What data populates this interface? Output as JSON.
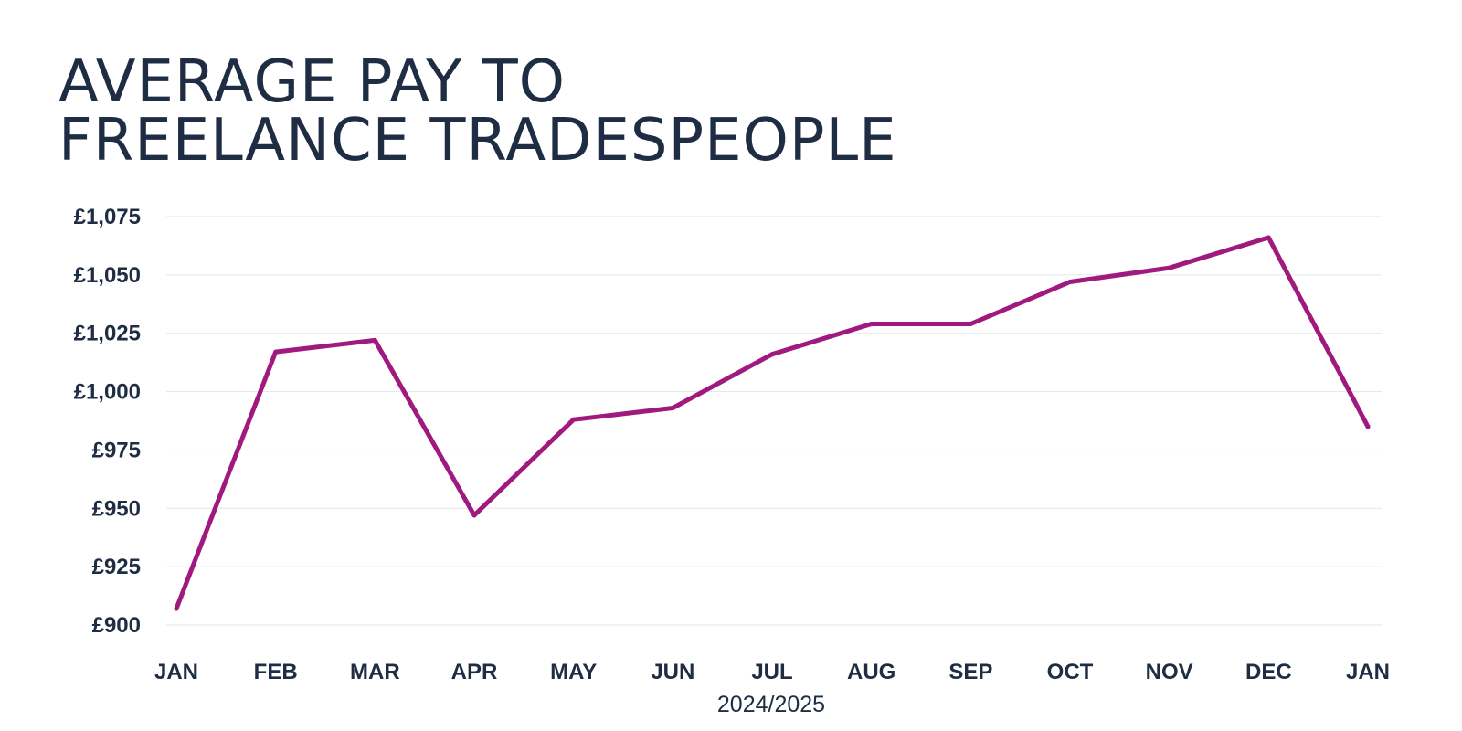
{
  "chart_data": {
    "type": "line",
    "title_lines": [
      "AVERAGE PAY TO",
      "FREELANCE TRADESPEOPLE"
    ],
    "categories": [
      "JAN",
      "FEB",
      "MAR",
      "APR",
      "MAY",
      "JUN",
      "JUL",
      "AUG",
      "SEP",
      "OCT",
      "NOV",
      "DEC",
      "JAN"
    ],
    "series": [
      {
        "values": [
          907,
          1017,
          1022,
          947,
          988,
          993,
          1016,
          1029,
          1029,
          1047,
          1053,
          1066,
          985
        ],
        "color": "#a0197e"
      }
    ],
    "xlabel": "2024/2025",
    "ylabel": "",
    "ylim": [
      900,
      1075
    ],
    "yticks": [
      900,
      925,
      950,
      975,
      1000,
      1025,
      1050,
      1075
    ],
    "ytick_labels": [
      "£900",
      "£925",
      "£950",
      "£975",
      "£1,000",
      "£1,025",
      "£1,050",
      "£1,075"
    ],
    "grid": true,
    "gridline_color": "#e3e6ea",
    "text_color": "#1f2d44"
  }
}
